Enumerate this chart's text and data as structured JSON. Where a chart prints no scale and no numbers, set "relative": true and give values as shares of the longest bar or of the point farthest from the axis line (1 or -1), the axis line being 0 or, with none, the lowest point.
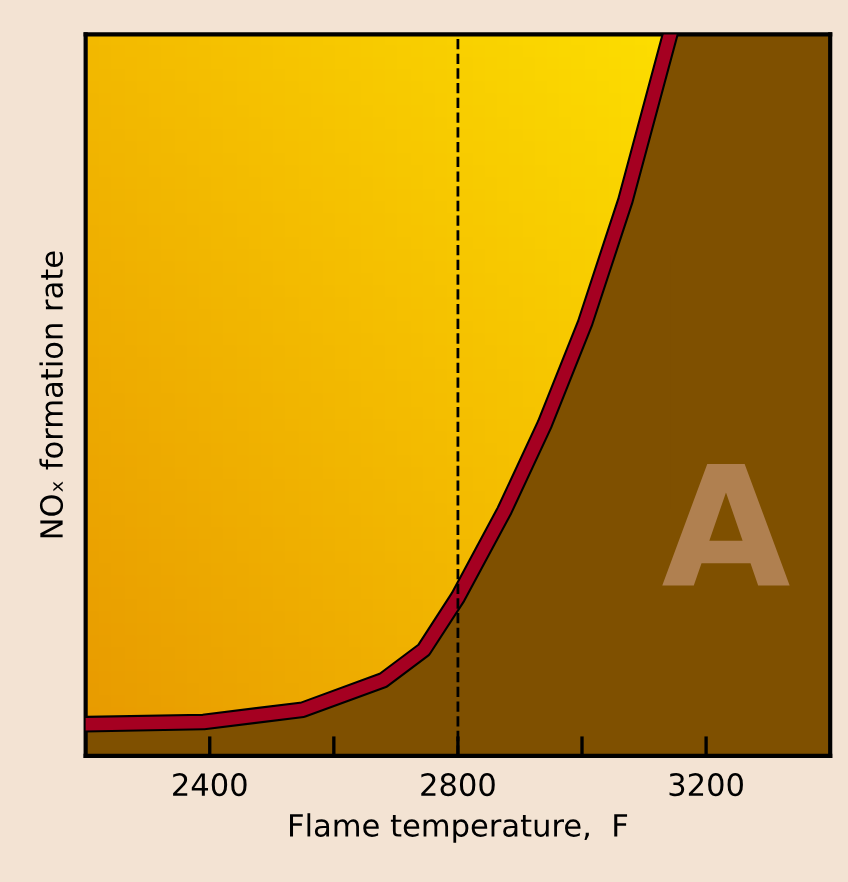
{
  "chart_data": {
    "type": "area",
    "relative": true,
    "xlabel": "Flame temperature,  F",
    "ylabel": "NOₓ formation rate",
    "x": [
      2202,
      2390,
      2550,
      2680,
      2745,
      2800,
      2875,
      2940,
      3005,
      3070,
      3142
    ],
    "series": [
      {
        "color": "#7f5000",
        "values": [
          0.044,
          0.047,
          0.064,
          0.105,
          0.147,
          0.22,
          0.34,
          0.46,
          0.6,
          0.77,
          1.0
        ]
      }
    ],
    "xlim": [
      2200,
      3400
    ],
    "xticks": [
      2400,
      {
        "value": 2600,
        "label": null
      },
      2800,
      {
        "value": 3000,
        "label": null
      },
      3200
    ],
    "ref_lines": [
      {
        "axis": "x",
        "value": 2800,
        "label": null,
        "color": "#000000",
        "line_style": "dashed"
      }
    ],
    "annotations": [
      "A"
    ],
    "grid": false,
    "legend": false,
    "tick_labels": "x"
  }
}
